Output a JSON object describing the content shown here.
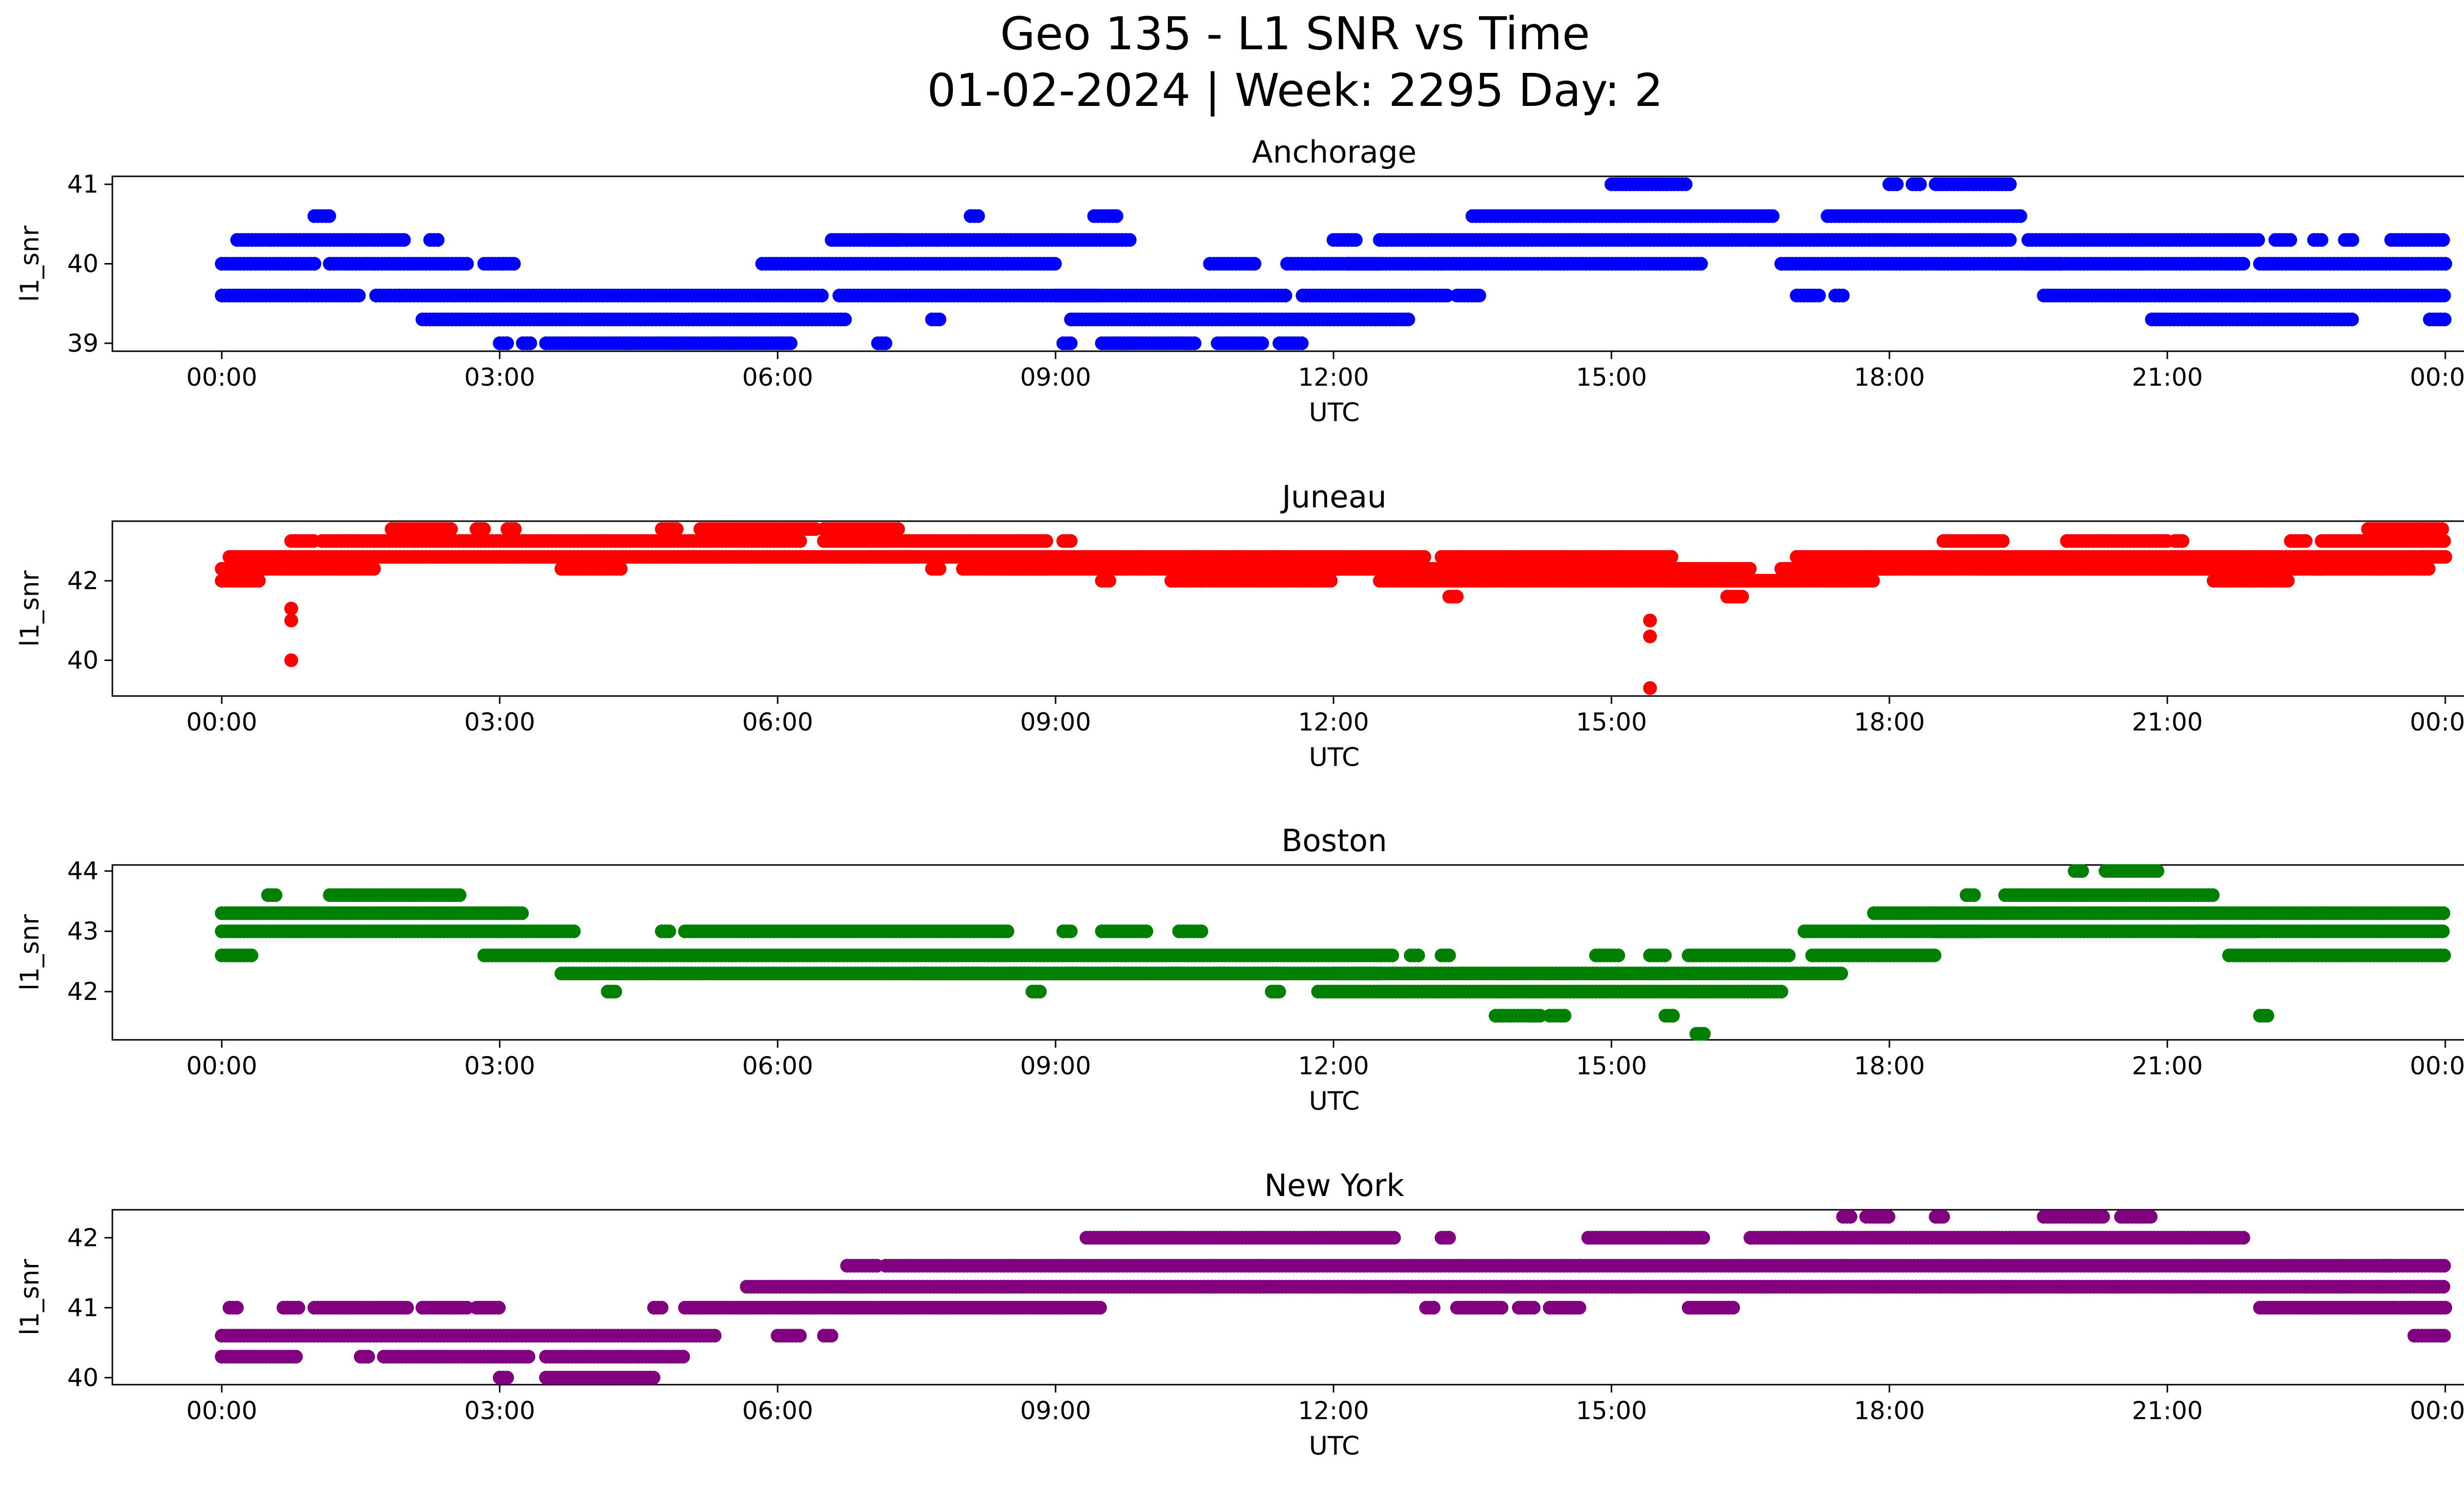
{
  "figure": {
    "title_line1": "Geo 135 - L1 SNR vs Time",
    "title_line2": "01-02-2024 | Week: 2295 Day: 2"
  },
  "chart_data": [
    {
      "type": "scatter",
      "title": "Anchorage",
      "xlabel": "UTC",
      "ylabel": "l1_snr",
      "color": "#0000ff",
      "xlim": [
        "2024-01-02T00:00",
        "2024-01-03T00:00"
      ],
      "xticks": [
        "00:00",
        "03:00",
        "06:00",
        "09:00",
        "12:00",
        "15:00",
        "18:00",
        "21:00",
        "00:00"
      ],
      "ylim": [
        38.9,
        41.1
      ],
      "yticks": [
        39,
        40,
        41
      ],
      "levels": [
        39.0,
        39.3,
        39.6,
        40.0,
        40.3,
        40.6,
        41.0
      ],
      "runs": [
        [
          "00:00",
          "01:00",
          40.0
        ],
        [
          "00:00",
          "01:30",
          39.6
        ],
        [
          "00:10",
          "02:00",
          40.3
        ],
        [
          "01:00",
          "01:10",
          40.6
        ],
        [
          "01:10",
          "02:40",
          40.0
        ],
        [
          "01:40",
          "01:55",
          39.6
        ],
        [
          "02:15",
          "02:20",
          40.3
        ],
        [
          "01:55",
          "06:30",
          39.6
        ],
        [
          "02:10",
          "06:45",
          39.3
        ],
        [
          "02:50",
          "03:10",
          40.0
        ],
        [
          "03:00",
          "03:05",
          39.0
        ],
        [
          "03:15",
          "03:20",
          39.0
        ],
        [
          "03:30",
          "06:10",
          39.0
        ],
        [
          "05:50",
          "09:00",
          40.0
        ],
        [
          "06:35",
          "07:20",
          40.3
        ],
        [
          "07:05",
          "07:10",
          39.0
        ],
        [
          "06:40",
          "09:30",
          39.6
        ],
        [
          "07:40",
          "07:45",
          39.3
        ],
        [
          "07:00",
          "09:50",
          40.3
        ],
        [
          "08:05",
          "08:10",
          40.6
        ],
        [
          "09:25",
          "09:40",
          40.6
        ],
        [
          "09:00",
          "11:30",
          39.6
        ],
        [
          "09:10",
          "12:50",
          39.3
        ],
        [
          "09:05",
          "09:10",
          39.0
        ],
        [
          "09:30",
          "10:30",
          39.0
        ],
        [
          "10:40",
          "11:10",
          40.0
        ],
        [
          "10:45",
          "11:15",
          39.0
        ],
        [
          "11:25",
          "11:40",
          39.0
        ],
        [
          "11:30",
          "12:30",
          40.0
        ],
        [
          "12:00",
          "12:15",
          40.3
        ],
        [
          "11:40",
          "13:15",
          39.6
        ],
        [
          "12:30",
          "19:20",
          40.3
        ],
        [
          "13:20",
          "13:35",
          39.6
        ],
        [
          "13:30",
          "16:45",
          40.6
        ],
        [
          "12:10",
          "16:00",
          40.0
        ],
        [
          "15:00",
          "15:50",
          41.0
        ],
        [
          "16:50",
          "19:50",
          40.0
        ],
        [
          "17:00",
          "17:15",
          39.6
        ],
        [
          "17:25",
          "17:30",
          39.6
        ],
        [
          "17:20",
          "19:25",
          40.6
        ],
        [
          "18:00",
          "18:05",
          41.0
        ],
        [
          "18:15",
          "18:20",
          41.0
        ],
        [
          "18:30",
          "19:20",
          41.0
        ],
        [
          "19:30",
          "22:00",
          40.3
        ],
        [
          "19:30",
          "21:50",
          40.0
        ],
        [
          "19:40",
          "24:00",
          39.6
        ],
        [
          "20:50",
          "23:00",
          39.3
        ],
        [
          "22:10",
          "22:20",
          40.3
        ],
        [
          "22:35",
          "22:40",
          40.3
        ],
        [
          "22:55",
          "23:00",
          40.3
        ],
        [
          "23:25",
          "24:00",
          40.3
        ],
        [
          "22:00",
          "24:00",
          40.0
        ],
        [
          "23:50",
          "24:00",
          39.3
        ]
      ]
    },
    {
      "type": "scatter",
      "title": "Juneau",
      "xlabel": "UTC",
      "ylabel": "l1_snr",
      "color": "#ff0000",
      "xlim": [
        "2024-01-02T00:00",
        "2024-01-03T00:00"
      ],
      "xticks": [
        "00:00",
        "03:00",
        "06:00",
        "09:00",
        "12:00",
        "15:00",
        "18:00",
        "21:00",
        "00:00"
      ],
      "ylim": [
        39.1,
        43.5
      ],
      "yticks": [
        40,
        42
      ],
      "levels": [
        39.3,
        40.0,
        40.6,
        41.0,
        41.3,
        41.6,
        42.0,
        42.3,
        42.6,
        43.0,
        43.3
      ],
      "runs": [
        [
          "00:00",
          "00:05",
          42.3
        ],
        [
          "00:00",
          "00:25",
          42.0
        ],
        [
          "00:05",
          "01:40",
          42.3
        ],
        [
          "00:05",
          "05:40",
          42.6
        ],
        [
          "00:45",
          "01:00",
          43.0
        ],
        [
          "01:05",
          "06:15",
          43.0
        ],
        [
          "01:50",
          "02:30",
          43.3
        ],
        [
          "02:45",
          "02:50",
          43.3
        ],
        [
          "03:05",
          "03:10",
          43.3
        ],
        [
          "03:40",
          "04:20",
          42.3
        ],
        [
          "04:45",
          "04:55",
          43.3
        ],
        [
          "05:10",
          "06:25",
          43.3
        ],
        [
          "05:00",
          "07:30",
          42.6
        ],
        [
          "06:30",
          "07:20",
          43.3
        ],
        [
          "06:30",
          "08:55",
          43.0
        ],
        [
          "07:40",
          "07:45",
          42.3
        ],
        [
          "08:00",
          "08:50",
          42.3
        ],
        [
          "08:50",
          "08:55",
          42.3
        ],
        [
          "09:05",
          "09:10",
          43.0
        ],
        [
          "07:00",
          "10:30",
          42.6
        ],
        [
          "08:30",
          "12:30",
          42.3
        ],
        [
          "09:30",
          "09:35",
          42.0
        ],
        [
          "10:15",
          "12:00",
          42.0
        ],
        [
          "10:30",
          "13:00",
          42.6
        ],
        [
          "12:00",
          "15:40",
          42.3
        ],
        [
          "12:30",
          "17:00",
          42.0
        ],
        [
          "13:15",
          "13:20",
          41.6
        ],
        [
          "13:10",
          "15:40",
          42.6
        ],
        [
          "15:35",
          "17:50",
          42.0
        ],
        [
          "16:15",
          "16:25",
          41.6
        ],
        [
          "15:20",
          "16:30",
          42.3
        ],
        [
          "16:50",
          "18:00",
          42.3
        ],
        [
          "17:00",
          "24:00",
          42.6
        ],
        [
          "17:30",
          "23:50",
          42.3
        ],
        [
          "18:35",
          "19:15",
          43.0
        ],
        [
          "19:55",
          "21:00",
          43.0
        ],
        [
          "21:05",
          "21:10",
          43.0
        ],
        [
          "19:00",
          "22:00",
          42.3
        ],
        [
          "21:30",
          "22:20",
          42.0
        ],
        [
          "22:20",
          "22:30",
          43.0
        ],
        [
          "22:40",
          "24:00",
          43.0
        ],
        [
          "23:10",
          "24:00",
          43.3
        ],
        [
          "22:35",
          "22:40",
          42.3
        ],
        [
          "23:45",
          "23:50",
          42.6
        ]
      ],
      "points": [
        [
          "00:45",
          41.3
        ],
        [
          "00:45",
          41.0
        ],
        [
          "00:45",
          40.0
        ],
        [
          "15:25",
          41.0
        ],
        [
          "15:25",
          40.6
        ],
        [
          "15:25",
          39.3
        ]
      ]
    },
    {
      "type": "scatter",
      "title": "Boston",
      "xlabel": "UTC",
      "ylabel": "l1_snr",
      "color": "#008000",
      "xlim": [
        "2024-01-02T00:00",
        "2024-01-03T00:00"
      ],
      "xticks": [
        "00:00",
        "03:00",
        "06:00",
        "09:00",
        "12:00",
        "15:00",
        "18:00",
        "21:00",
        "00:00"
      ],
      "ylim": [
        41.2,
        44.1
      ],
      "yticks": [
        42,
        43,
        44
      ],
      "levels": [
        41.3,
        41.6,
        42.0,
        42.3,
        42.6,
        43.0,
        43.3,
        43.6,
        44.0
      ],
      "runs": [
        [
          "00:00",
          "00:20",
          42.6
        ],
        [
          "00:00",
          "03:15",
          43.3
        ],
        [
          "00:00",
          "03:50",
          43.0
        ],
        [
          "00:30",
          "00:35",
          43.6
        ],
        [
          "01:10",
          "02:35",
          43.6
        ],
        [
          "02:50",
          "12:40",
          42.6
        ],
        [
          "03:40",
          "11:30",
          42.3
        ],
        [
          "04:10",
          "04:15",
          42.0
        ],
        [
          "04:45",
          "04:50",
          43.0
        ],
        [
          "05:00",
          "08:30",
          43.0
        ],
        [
          "08:45",
          "08:50",
          42.0
        ],
        [
          "09:05",
          "09:10",
          43.0
        ],
        [
          "09:30",
          "10:00",
          43.0
        ],
        [
          "10:20",
          "10:35",
          43.0
        ],
        [
          "07:30",
          "12:30",
          42.3
        ],
        [
          "11:20",
          "11:25",
          42.0
        ],
        [
          "11:50",
          "16:50",
          42.0
        ],
        [
          "12:00",
          "17:30",
          42.3
        ],
        [
          "12:50",
          "12:55",
          42.6
        ],
        [
          "13:10",
          "13:15",
          42.6
        ],
        [
          "13:45",
          "14:15",
          41.6
        ],
        [
          "14:20",
          "14:30",
          41.6
        ],
        [
          "15:35",
          "15:40",
          41.6
        ],
        [
          "15:55",
          "16:00",
          41.3
        ],
        [
          "14:50",
          "15:05",
          42.6
        ],
        [
          "15:25",
          "15:35",
          42.6
        ],
        [
          "15:50",
          "16:55",
          42.6
        ],
        [
          "17:10",
          "18:30",
          42.6
        ],
        [
          "17:05",
          "19:00",
          43.0
        ],
        [
          "17:50",
          "22:30",
          43.3
        ],
        [
          "18:30",
          "22:00",
          43.0
        ],
        [
          "18:50",
          "18:55",
          43.6
        ],
        [
          "19:15",
          "21:30",
          43.6
        ],
        [
          "20:00",
          "20:05",
          44.0
        ],
        [
          "20:20",
          "20:55",
          44.0
        ],
        [
          "21:20",
          "24:00",
          43.0
        ],
        [
          "21:40",
          "24:00",
          42.6
        ],
        [
          "22:00",
          "22:05",
          41.6
        ],
        [
          "22:30",
          "24:00",
          43.3
        ]
      ]
    },
    {
      "type": "scatter",
      "title": "New York",
      "xlabel": "UTC",
      "ylabel": "l1_snr",
      "color": "#800080",
      "xlim": [
        "2024-01-02T00:00",
        "2024-01-03T00:00"
      ],
      "xticks": [
        "00:00",
        "03:00",
        "06:00",
        "09:00",
        "12:00",
        "15:00",
        "18:00",
        "21:00",
        "00:00"
      ],
      "ylim": [
        39.9,
        42.4
      ],
      "yticks": [
        40,
        41,
        42
      ],
      "levels": [
        40.0,
        40.3,
        40.6,
        41.0,
        41.3,
        41.6,
        42.0,
        42.3
      ],
      "runs": [
        [
          "00:00",
          "00:50",
          40.3
        ],
        [
          "00:00",
          "05:20",
          40.6
        ],
        [
          "00:05",
          "00:10",
          41.0
        ],
        [
          "00:40",
          "00:50",
          41.0
        ],
        [
          "01:00",
          "02:00",
          41.0
        ],
        [
          "01:30",
          "01:35",
          40.3
        ],
        [
          "02:10",
          "02:40",
          41.0
        ],
        [
          "02:45",
          "03:00",
          41.0
        ],
        [
          "01:45",
          "03:20",
          40.3
        ],
        [
          "03:30",
          "05:00",
          40.3
        ],
        [
          "03:00",
          "03:05",
          40.0
        ],
        [
          "03:30",
          "04:40",
          40.0
        ],
        [
          "04:40",
          "04:45",
          41.0
        ],
        [
          "05:00",
          "09:30",
          41.0
        ],
        [
          "05:40",
          "06:10",
          41.3
        ],
        [
          "06:00",
          "06:15",
          40.6
        ],
        [
          "06:30",
          "06:35",
          40.6
        ],
        [
          "06:10",
          "22:30",
          41.3
        ],
        [
          "06:45",
          "07:05",
          41.6
        ],
        [
          "07:10",
          "14:40",
          41.6
        ],
        [
          "09:20",
          "12:40",
          42.0
        ],
        [
          "13:00",
          "13:05",
          41.0
        ],
        [
          "13:10",
          "13:15",
          42.0
        ],
        [
          "13:20",
          "13:50",
          41.0
        ],
        [
          "14:00",
          "14:10",
          41.0
        ],
        [
          "14:20",
          "14:40",
          41.0
        ],
        [
          "14:40",
          "24:00",
          41.6
        ],
        [
          "14:45",
          "16:00",
          42.0
        ],
        [
          "15:50",
          "16:20",
          41.0
        ],
        [
          "16:30",
          "21:50",
          42.0
        ],
        [
          "17:30",
          "17:35",
          42.3
        ],
        [
          "17:45",
          "18:00",
          42.3
        ],
        [
          "18:30",
          "18:35",
          42.3
        ],
        [
          "19:40",
          "20:20",
          42.3
        ],
        [
          "20:30",
          "20:50",
          42.3
        ],
        [
          "22:30",
          "24:00",
          41.3
        ],
        [
          "22:00",
          "24:00",
          41.0
        ],
        [
          "23:20",
          "23:25",
          41.6
        ],
        [
          "23:40",
          "24:00",
          40.6
        ]
      ]
    }
  ]
}
